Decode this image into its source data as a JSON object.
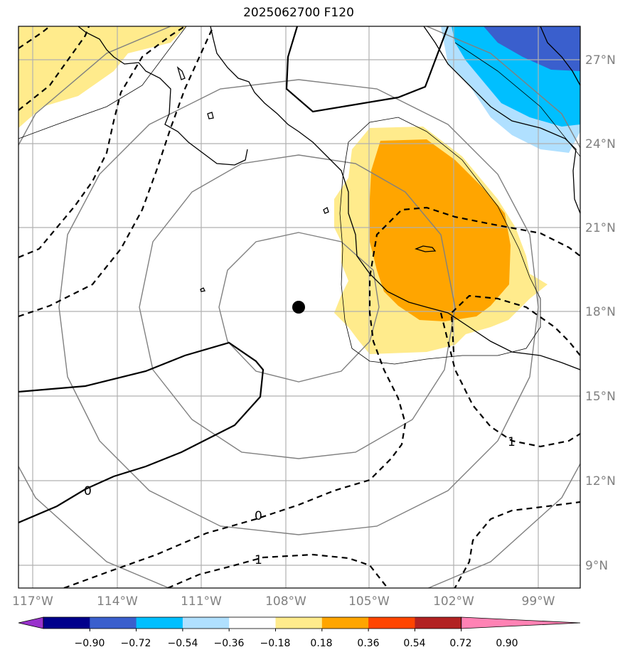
{
  "title": "2025062700 F120",
  "lat_ticks": [
    "27°N",
    "24°N",
    "21°N",
    "18°N",
    "15°N",
    "12°N",
    "9°N"
  ],
  "lon_ticks": [
    "117°W",
    "114°W",
    "111°W",
    "108°W",
    "105°W",
    "102°W",
    "99°W"
  ],
  "colorbar": {
    "labels": [
      "−0.90",
      "−0.72",
      "−0.54",
      "−0.36",
      "−0.18",
      "0.18",
      "0.36",
      "0.54",
      "0.72",
      "0.90"
    ],
    "colors": [
      "#9932cc",
      "#00008b",
      "#3a5fcd",
      "#00bfff",
      "#b0e0ff",
      "#ffffff",
      "#ffeb8c",
      "#ffa500",
      "#ff4500",
      "#b22222",
      "#ff82b4"
    ]
  },
  "contour_labels": [
    "0",
    "0",
    "1",
    "1"
  ],
  "center_marker": "storm-center-dot"
}
